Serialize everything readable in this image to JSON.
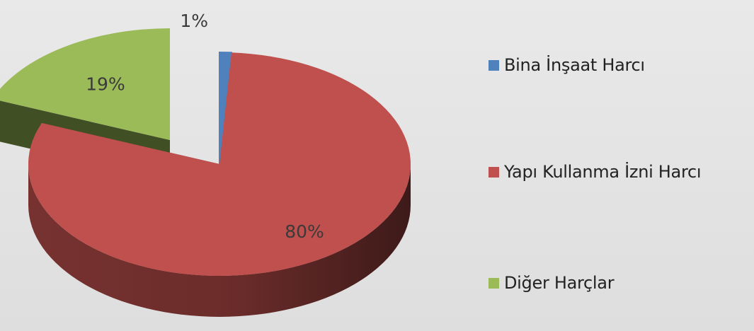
{
  "chart_data": {
    "type": "pie",
    "title": "",
    "style": "3d-exploded",
    "legend_position": "right",
    "slices": [
      {
        "label": "Bina İnşaat Harcı",
        "value": 1,
        "value_label": "1%",
        "color": "#4f81bd"
      },
      {
        "label": "Yapı Kullanma İzni Harcı",
        "value": 80,
        "value_label": "80%",
        "color": "#c0504d"
      },
      {
        "label": "Diğer Harçlar",
        "value": 19,
        "value_label": "19%",
        "color": "#9bbb59"
      }
    ]
  }
}
